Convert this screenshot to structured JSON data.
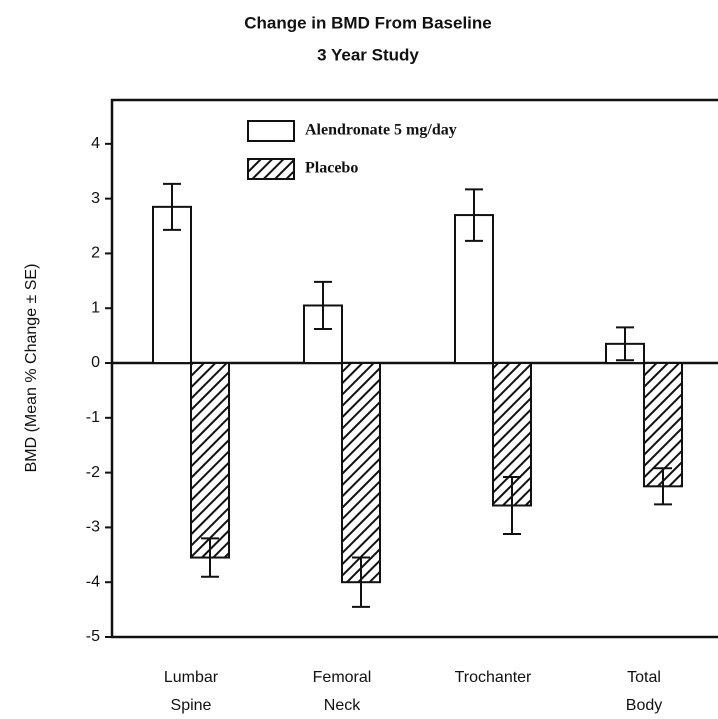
{
  "chart_data": {
    "type": "bar",
    "title": "Change in BMD From Baseline",
    "subtitle": "3 Year Study",
    "y_label": "BMD (Mean % Change ± SE)",
    "categories": [
      [
        "Lumbar",
        "Spine"
      ],
      [
        "Femoral",
        "Neck"
      ],
      [
        "Trochanter"
      ],
      [
        "Total",
        "Body"
      ]
    ],
    "series": [
      {
        "name": "Alendronate 5 mg/day",
        "color": "#ffffff",
        "pattern": "solid",
        "values": [
          2.85,
          1.05,
          2.7,
          0.35
        ],
        "errors": [
          0.42,
          0.43,
          0.47,
          0.3
        ]
      },
      {
        "name": "Placebo",
        "color": "#ffffff",
        "pattern": "hatch",
        "values": [
          -3.55,
          -4.0,
          -2.6,
          -2.25
        ],
        "errors": [
          0.35,
          0.45,
          0.52,
          0.33
        ]
      }
    ],
    "ylim": [
      -5,
      4.8
    ],
    "yticks": [
      -5,
      -4,
      -3,
      -2,
      -1,
      0,
      1,
      2,
      3,
      4
    ],
    "grid": false,
    "legend": "top"
  }
}
